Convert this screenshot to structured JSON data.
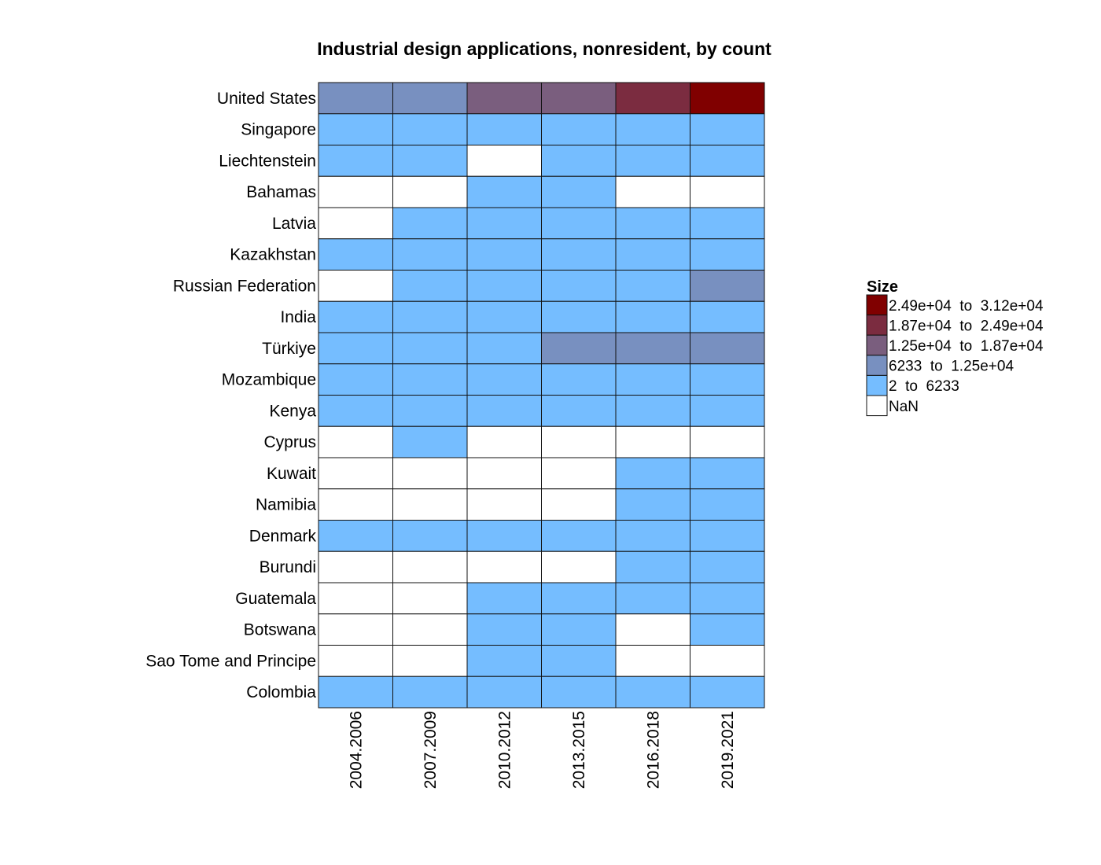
{
  "chart_data": {
    "type": "heatmap",
    "title": "Industrial design applications, nonresident, by count",
    "x_categories": [
      "2004.2006",
      "2007.2009",
      "2010.2012",
      "2013.2015",
      "2016.2018",
      "2019.2021"
    ],
    "y_categories": [
      "United States",
      "Singapore",
      "Liechtenstein",
      "Bahamas",
      "Latvia",
      "Kazakhstan",
      "Russian Federation",
      "India",
      "Türkiye",
      "Mozambique",
      "Kenya",
      "Cyprus",
      "Kuwait",
      "Namibia",
      "Denmark",
      "Burundi",
      "Guatemala",
      "Botswana",
      "Sao Tome and Principe",
      "Colombia"
    ],
    "value_note": "Cells are encoded by legend bin index: 0 = NaN, 1 = 2 to 6233, 2 = 6233 to 1.25e+04, 3 = 1.25e+04 to 1.87e+04, 4 = 1.87e+04 to 2.49e+04, 5 = 2.49e+04 to 3.12e+04",
    "bins": [
      [
        2,
        2,
        3,
        3,
        4,
        5
      ],
      [
        1,
        1,
        1,
        1,
        1,
        1
      ],
      [
        1,
        1,
        0,
        1,
        1,
        1
      ],
      [
        0,
        0,
        1,
        1,
        0,
        0
      ],
      [
        0,
        1,
        1,
        1,
        1,
        1
      ],
      [
        1,
        1,
        1,
        1,
        1,
        1
      ],
      [
        0,
        1,
        1,
        1,
        1,
        2
      ],
      [
        1,
        1,
        1,
        1,
        1,
        1
      ],
      [
        1,
        1,
        1,
        2,
        2,
        2
      ],
      [
        1,
        1,
        1,
        1,
        1,
        1
      ],
      [
        1,
        1,
        1,
        1,
        1,
        1
      ],
      [
        0,
        1,
        0,
        0,
        0,
        0
      ],
      [
        0,
        0,
        0,
        0,
        1,
        1
      ],
      [
        0,
        0,
        0,
        0,
        1,
        1
      ],
      [
        1,
        1,
        1,
        1,
        1,
        1
      ],
      [
        0,
        0,
        0,
        0,
        1,
        1
      ],
      [
        0,
        0,
        1,
        1,
        1,
        1
      ],
      [
        0,
        0,
        1,
        1,
        0,
        1
      ],
      [
        0,
        0,
        1,
        1,
        0,
        0
      ],
      [
        1,
        1,
        1,
        1,
        1,
        1
      ]
    ],
    "legend": {
      "title": "Size",
      "entries": [
        {
          "label": "2.49e+04  to  3.12e+04",
          "color": "#800000"
        },
        {
          "label": "1.87e+04  to  2.49e+04",
          "color": "#7b2c40"
        },
        {
          "label": "1.25e+04  to  1.87e+04",
          "color": "#7a5e7e"
        },
        {
          "label": "6233  to  1.25e+04",
          "color": "#7890c0"
        },
        {
          "label": "2  to  6233",
          "color": "#75bdff"
        },
        {
          "label": "NaN",
          "color": "#ffffff"
        }
      ]
    },
    "bin_colors": [
      "#ffffff",
      "#75bdff",
      "#7890c0",
      "#7a5e7e",
      "#7b2c40",
      "#800000"
    ],
    "grid": true
  }
}
